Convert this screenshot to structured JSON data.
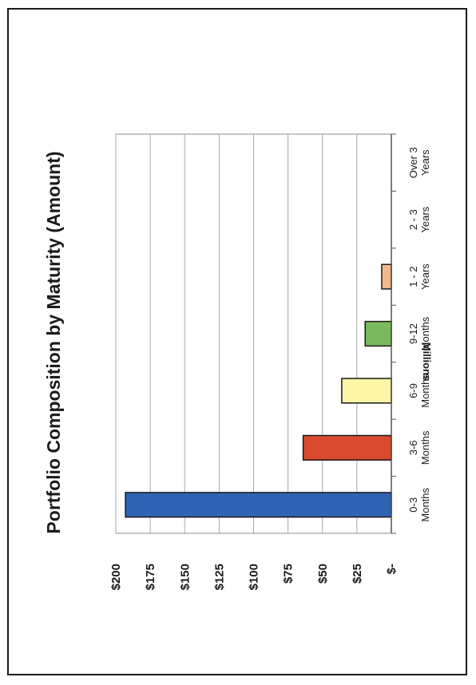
{
  "chart_data": {
    "type": "bar",
    "title": "Portfolio Composition by Maturity (Amount)",
    "ylabel": "Millions",
    "xlabel": "",
    "categories": [
      [
        "0-3",
        "Months"
      ],
      [
        "3-6",
        "Months"
      ],
      [
        "6-9",
        "Months"
      ],
      [
        "9-12",
        "Months"
      ],
      [
        "1 - 2",
        "Years"
      ],
      [
        "2 - 3",
        "Years"
      ],
      [
        "Over 3",
        "Years"
      ]
    ],
    "values": [
      193,
      64,
      36,
      19,
      7,
      0,
      0
    ],
    "ylim": [
      0,
      200
    ],
    "ytick_values": [
      0,
      25,
      50,
      75,
      100,
      125,
      150,
      175,
      200
    ],
    "ytick_labels": [
      "$-",
      "$25",
      "$50",
      "$75",
      "$100",
      "$125",
      "$150",
      "$175",
      "$200"
    ],
    "colors": [
      "#2f63b4",
      "#d94a2e",
      "#fdf6a6",
      "#7aba5c",
      "#f1b98a",
      "#cccccc",
      "#cccccc"
    ],
    "grid": true,
    "orientation": "rotated-90-ccw"
  }
}
